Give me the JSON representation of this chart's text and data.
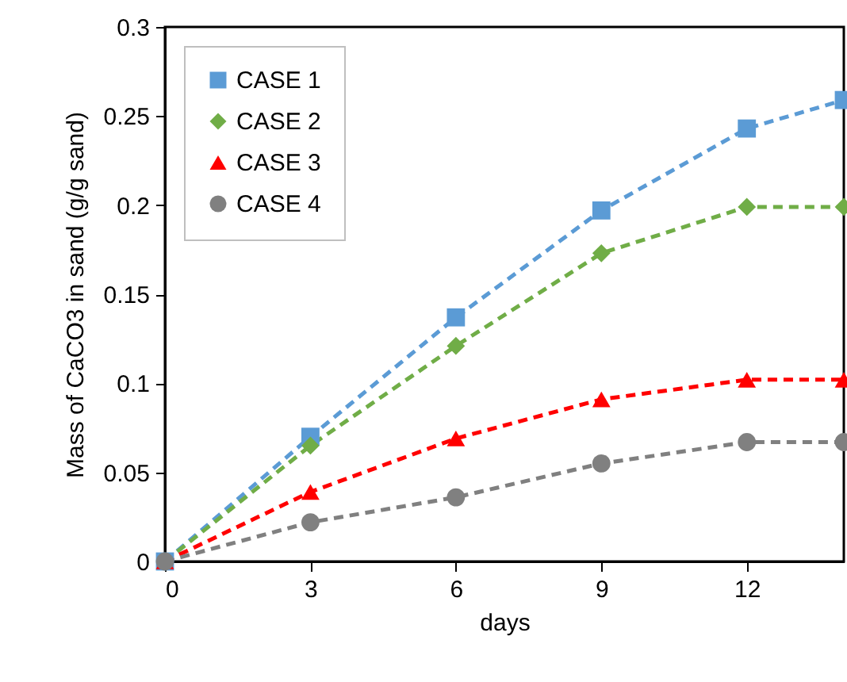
{
  "chart_data": {
    "type": "line",
    "xlabel": "days",
    "ylabel": "Mass of CaCO3 in sand (g/g sand)",
    "x": [
      0,
      3,
      6,
      9,
      12,
      14
    ],
    "xlim": [
      0,
      14
    ],
    "xticks": [
      0,
      3,
      6,
      9,
      12
    ],
    "ylim": [
      0,
      0.3
    ],
    "yticks": [
      0,
      0.05,
      0.1,
      0.15,
      0.2,
      0.25,
      0.3
    ],
    "grid": false,
    "legend": "top left",
    "line_style": "dashed",
    "series": [
      {
        "name": "CASE 1",
        "color": "#5b9bd5",
        "marker": "square",
        "values": [
          0,
          0.07,
          0.137,
          0.197,
          0.243,
          0.259
        ]
      },
      {
        "name": "CASE 2",
        "color": "#70ad47",
        "marker": "diamond",
        "values": [
          0,
          0.065,
          0.121,
          0.173,
          0.199,
          0.199
        ]
      },
      {
        "name": "CASE 3",
        "color": "#ff0000",
        "marker": "triangle",
        "values": [
          0,
          0.039,
          0.069,
          0.091,
          0.102,
          0.102
        ]
      },
      {
        "name": "CASE 4",
        "color": "#808080",
        "marker": "circle",
        "values": [
          0,
          0.022,
          0.036,
          0.055,
          0.067,
          0.067
        ]
      }
    ]
  }
}
